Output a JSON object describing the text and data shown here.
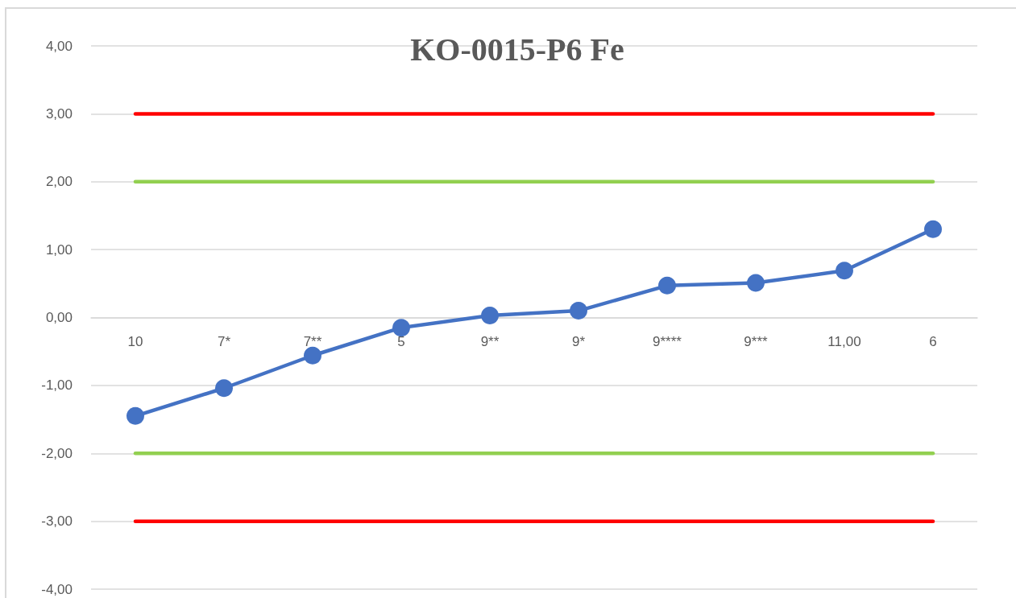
{
  "chart_data": {
    "type": "line",
    "title": "KO-0015-P6 Fe",
    "categories": [
      "10",
      "7*",
      "7**",
      "5",
      "9**",
      "9*",
      "9****",
      "9***",
      "11,00",
      "6"
    ],
    "series": [
      {
        "color": "#ff0000",
        "marker": "none",
        "values": [
          3,
          3,
          3,
          3,
          3,
          3,
          3,
          3,
          3,
          3
        ]
      },
      {
        "color": "#92d050",
        "marker": "none",
        "values": [
          2,
          2,
          2,
          2,
          2,
          2,
          2,
          2,
          2,
          2
        ]
      },
      {
        "color": "#92d050",
        "marker": "none",
        "values": [
          -2,
          -2,
          -2,
          -2,
          -2,
          -2,
          -2,
          -2,
          -2,
          -2
        ]
      },
      {
        "color": "#ff0000",
        "marker": "none",
        "values": [
          -3,
          -3,
          -3,
          -3,
          -3,
          -3,
          -3,
          -3,
          -3,
          -3
        ]
      },
      {
        "color": "#4472c4",
        "values": [
          -1.45,
          -1.04,
          -0.56,
          -0.15,
          0.03,
          0.1,
          0.47,
          0.51,
          0.69,
          1.3
        ]
      }
    ],
    "ylim": [
      -4,
      4
    ],
    "yticks": [
      {
        "value": -4,
        "label": "-4,00"
      },
      {
        "value": -3,
        "label": "-3,00"
      },
      {
        "value": -2,
        "label": "-2,00"
      },
      {
        "value": -1,
        "label": "-1,00"
      },
      {
        "value": 0,
        "label": "0,00"
      },
      {
        "value": 1,
        "label": "1,00"
      },
      {
        "value": 2,
        "label": "2,00"
      },
      {
        "value": 3,
        "label": "3,00"
      },
      {
        "value": 4,
        "label": "4,00"
      }
    ],
    "grid": "y",
    "marker": "circle"
  }
}
